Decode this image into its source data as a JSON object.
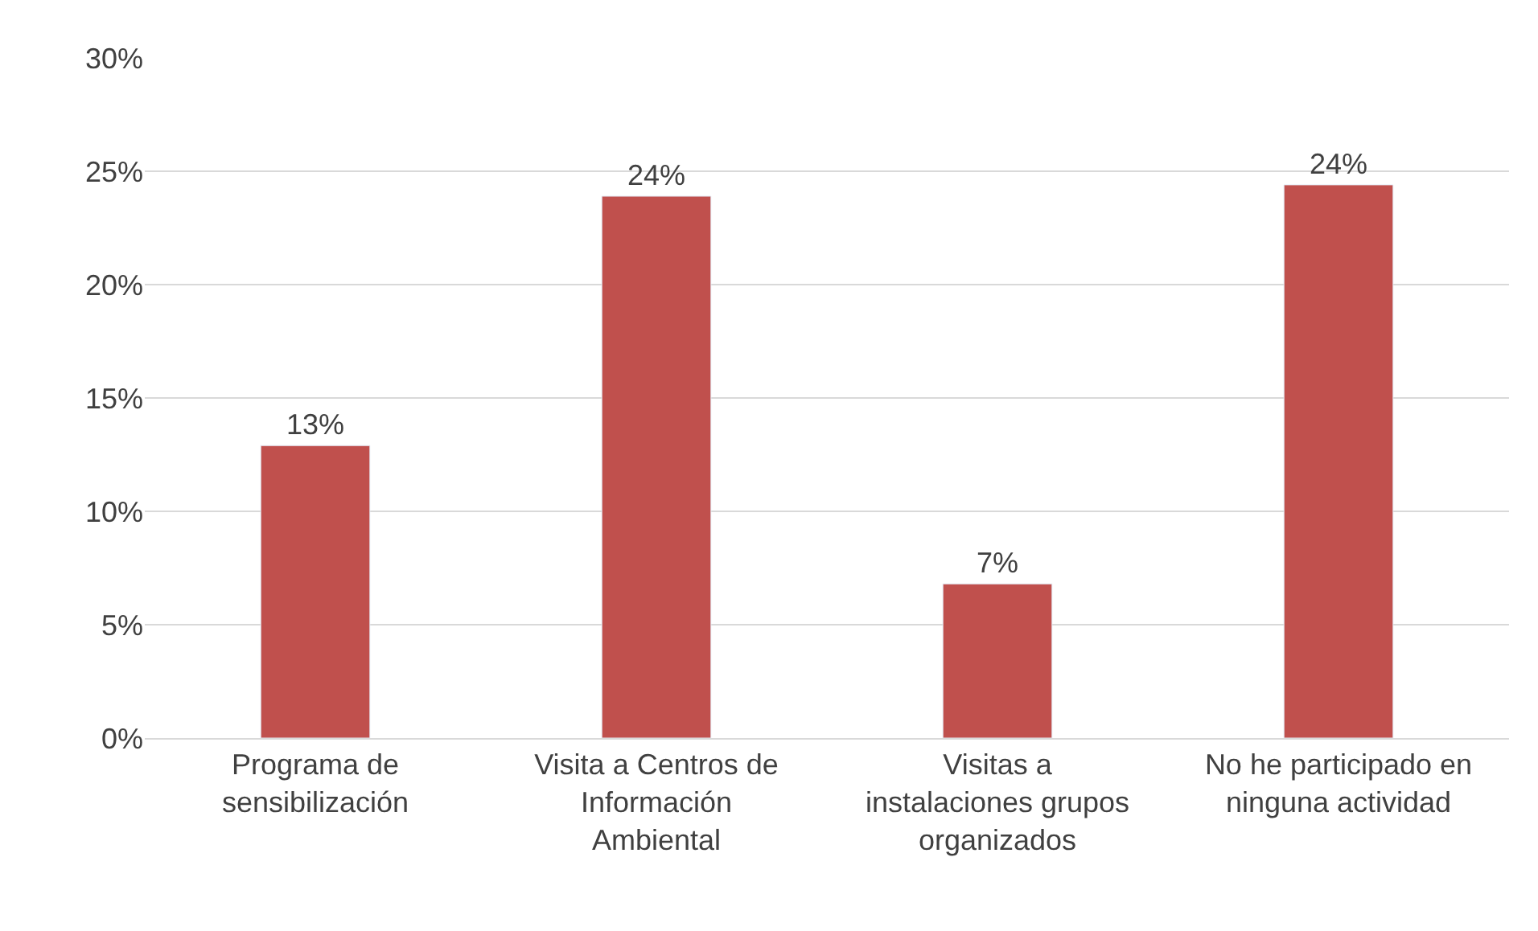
{
  "chart_data": {
    "type": "bar",
    "categories": [
      "Programa de sensibilización",
      "Visita a Centros de Información Ambiental",
      "Visitas a instalaciones grupos organizados",
      "No he participado en ninguna actividad"
    ],
    "values": [
      12.9,
      23.9,
      6.8,
      24.4
    ],
    "value_labels": [
      "13%",
      "24%",
      "7%",
      "24%"
    ],
    "color": "#c0504d",
    "ylim": [
      0,
      30
    ],
    "yticks": [
      {
        "value": 0,
        "label": "0%"
      },
      {
        "value": 5,
        "label": "5%"
      },
      {
        "value": 10,
        "label": "10%"
      },
      {
        "value": 15,
        "label": "15%"
      },
      {
        "value": 20,
        "label": "20%"
      },
      {
        "value": 25,
        "label": "25%"
      },
      {
        "value": 30,
        "label": "30%"
      }
    ],
    "grid": "y",
    "legend": false
  }
}
